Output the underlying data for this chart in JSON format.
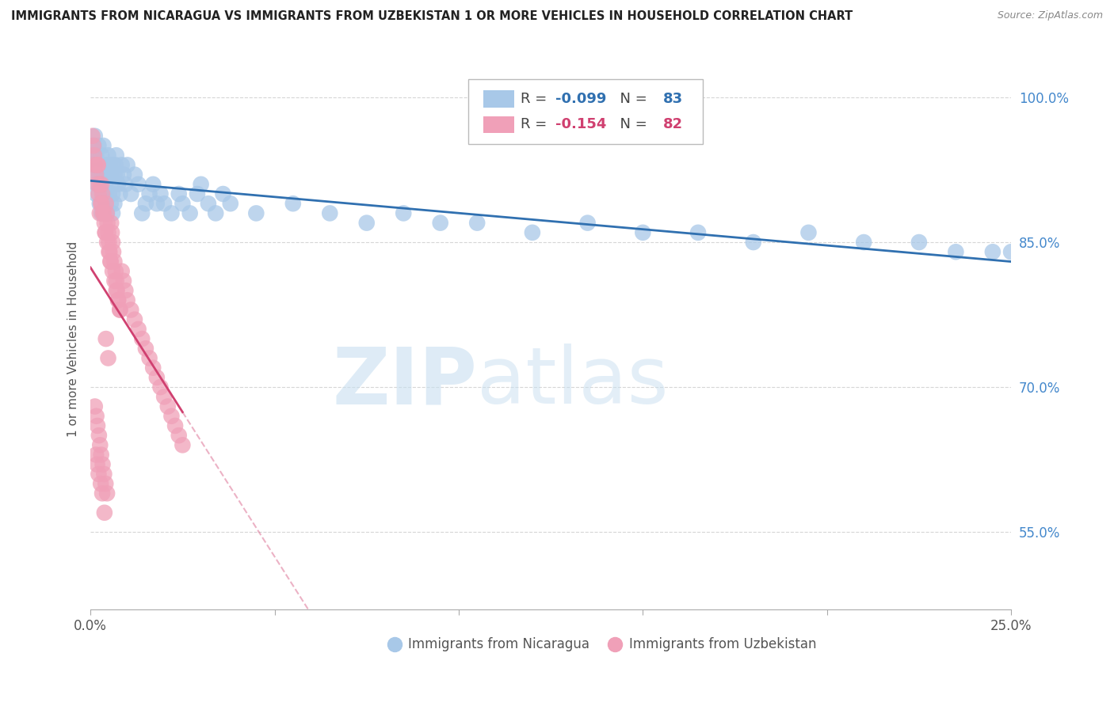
{
  "title": "IMMIGRANTS FROM NICARAGUA VS IMMIGRANTS FROM UZBEKISTAN 1 OR MORE VEHICLES IN HOUSEHOLD CORRELATION CHART",
  "source": "Source: ZipAtlas.com",
  "ylabel": "1 or more Vehicles in Household",
  "xlim": [
    0.0,
    25.0
  ],
  "ylim": [
    47.0,
    103.0
  ],
  "yticks": [
    55.0,
    70.0,
    85.0,
    100.0
  ],
  "xticks": [
    0.0,
    5.0,
    10.0,
    15.0,
    20.0,
    25.0
  ],
  "xtick_labels": [
    "0.0%",
    "",
    "",
    "",
    "",
    "25.0%"
  ],
  "ytick_labels": [
    "55.0%",
    "70.0%",
    "85.0%",
    "100.0%"
  ],
  "legend_R_nicaragua": "-0.099",
  "legend_N_nicaragua": "83",
  "legend_R_uzbekistan": "-0.154",
  "legend_N_uzbekistan": "82",
  "color_nicaragua": "#A8C8E8",
  "color_uzbekistan": "#F0A0B8",
  "color_trendline_nicaragua": "#3070B0",
  "color_trendline_uzbekistan": "#D04070",
  "watermark_zip": "ZIP",
  "watermark_atlas": "atlas",
  "background_color": "#ffffff",
  "nicaragua_x": [
    0.05,
    0.08,
    0.1,
    0.12,
    0.15,
    0.18,
    0.2,
    0.22,
    0.25,
    0.28,
    0.3,
    0.32,
    0.35,
    0.38,
    0.4,
    0.42,
    0.45,
    0.48,
    0.5,
    0.52,
    0.55,
    0.58,
    0.6,
    0.62,
    0.65,
    0.68,
    0.7,
    0.72,
    0.75,
    0.8,
    0.85,
    0.9,
    0.95,
    1.0,
    1.1,
    1.2,
    1.3,
    1.4,
    1.5,
    1.6,
    1.7,
    1.8,
    1.9,
    2.0,
    2.2,
    2.4,
    2.5,
    2.7,
    2.9,
    3.0,
    3.2,
    3.4,
    3.6,
    3.8,
    4.5,
    5.5,
    6.5,
    7.5,
    8.5,
    9.5,
    10.5,
    12.0,
    13.5,
    15.0,
    16.5,
    18.0,
    19.5,
    21.0,
    22.5,
    23.5,
    24.5,
    25.0,
    0.15,
    0.2,
    0.25,
    0.3,
    0.35,
    0.4,
    0.45,
    0.5,
    0.55,
    0.6,
    0.65
  ],
  "nicaragua_y": [
    94,
    93,
    95,
    96,
    94,
    92,
    93,
    95,
    92,
    91,
    94,
    93,
    95,
    92,
    91,
    90,
    93,
    94,
    92,
    93,
    92,
    91,
    90,
    93,
    92,
    93,
    94,
    92,
    91,
    90,
    93,
    92,
    91,
    93,
    90,
    92,
    91,
    88,
    89,
    90,
    91,
    89,
    90,
    89,
    88,
    90,
    89,
    88,
    90,
    91,
    89,
    88,
    90,
    89,
    88,
    89,
    88,
    87,
    88,
    87,
    87,
    86,
    87,
    86,
    86,
    85,
    86,
    85,
    85,
    84,
    84,
    84,
    90,
    91,
    89,
    88,
    90,
    89,
    88,
    90,
    89,
    88,
    89
  ],
  "uzbekistan_x": [
    0.05,
    0.08,
    0.1,
    0.12,
    0.15,
    0.18,
    0.2,
    0.22,
    0.25,
    0.28,
    0.3,
    0.32,
    0.35,
    0.38,
    0.4,
    0.42,
    0.44,
    0.46,
    0.48,
    0.5,
    0.52,
    0.54,
    0.56,
    0.58,
    0.6,
    0.62,
    0.65,
    0.68,
    0.7,
    0.72,
    0.75,
    0.8,
    0.85,
    0.9,
    0.95,
    1.0,
    1.1,
    1.2,
    1.3,
    1.4,
    1.5,
    1.6,
    1.7,
    1.8,
    1.9,
    2.0,
    2.1,
    2.2,
    2.3,
    2.4,
    2.5,
    0.2,
    0.25,
    0.3,
    0.35,
    0.4,
    0.45,
    0.5,
    0.55,
    0.6,
    0.65,
    0.7,
    0.75,
    0.8,
    0.15,
    0.18,
    0.22,
    0.28,
    0.32,
    0.38,
    0.42,
    0.48,
    0.12,
    0.16,
    0.19,
    0.23,
    0.26,
    0.29,
    0.33,
    0.37,
    0.41,
    0.45
  ],
  "uzbekistan_y": [
    96,
    95,
    94,
    93,
    92,
    91,
    93,
    90,
    88,
    89,
    91,
    90,
    88,
    87,
    86,
    89,
    88,
    87,
    86,
    85,
    84,
    83,
    87,
    86,
    85,
    84,
    83,
    82,
    81,
    80,
    79,
    78,
    82,
    81,
    80,
    79,
    78,
    77,
    76,
    75,
    74,
    73,
    72,
    71,
    70,
    69,
    68,
    67,
    66,
    65,
    64,
    93,
    91,
    89,
    88,
    86,
    85,
    84,
    83,
    82,
    81,
    80,
    79,
    78,
    63,
    62,
    61,
    60,
    59,
    57,
    75,
    73,
    68,
    67,
    66,
    65,
    64,
    63,
    62,
    61,
    60,
    59
  ]
}
